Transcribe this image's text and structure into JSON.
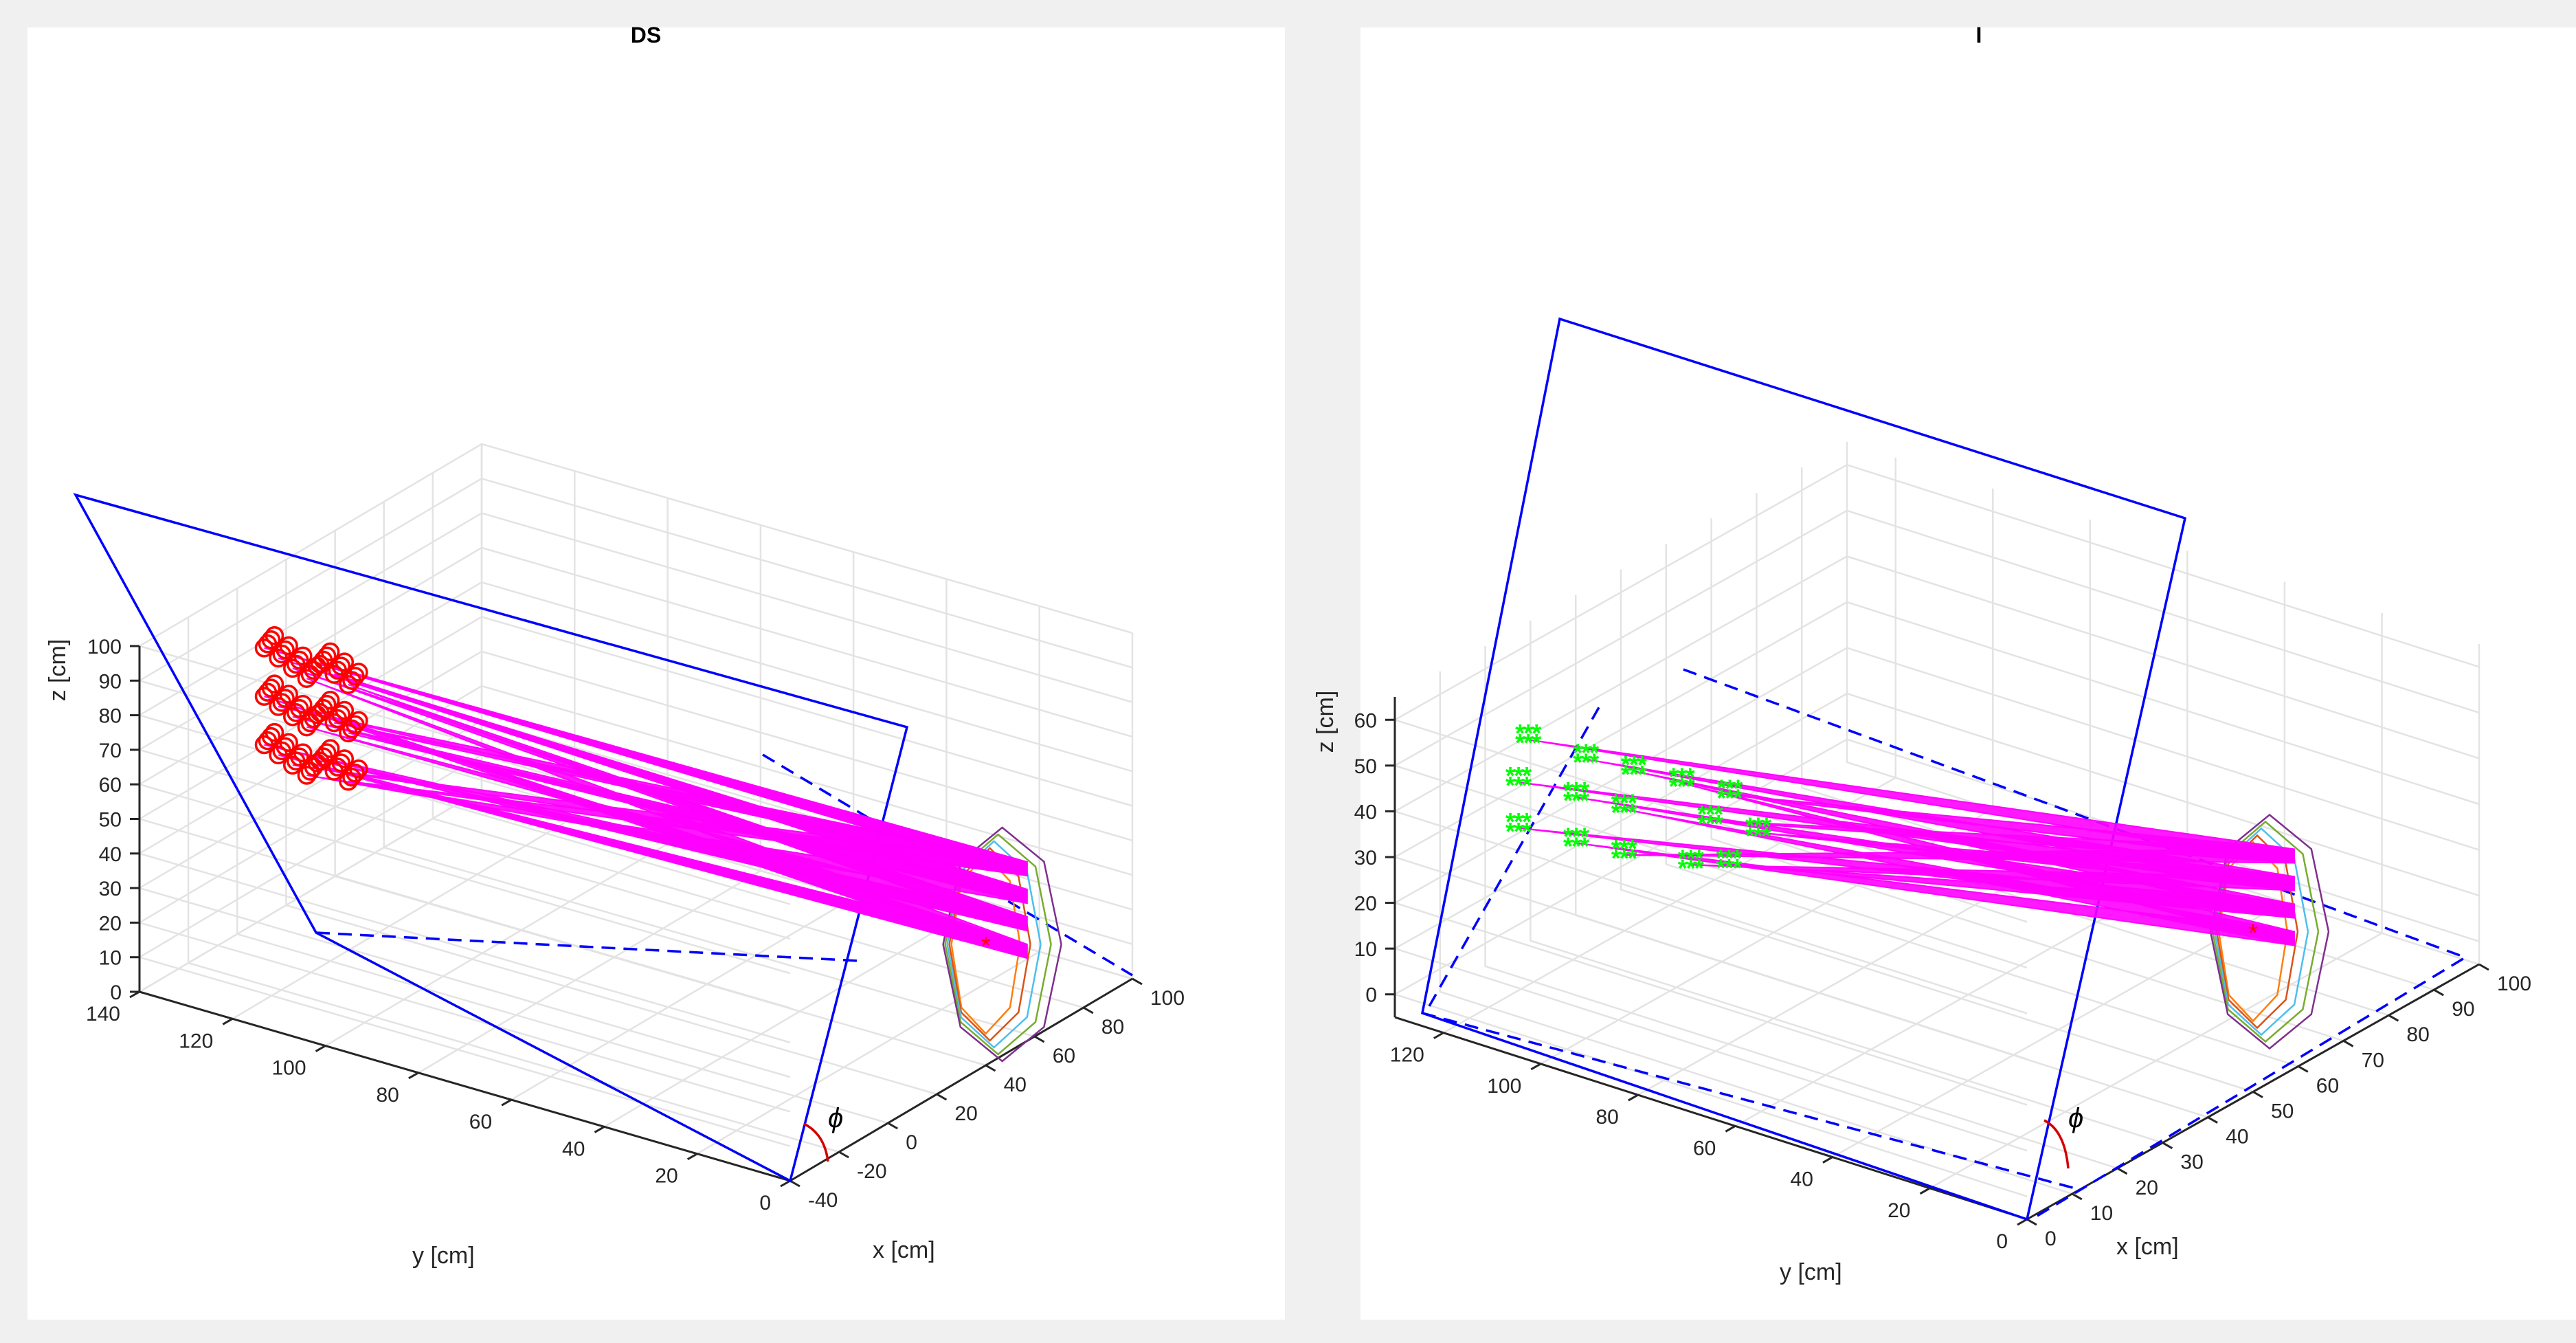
{
  "figure": {
    "background": "#f0f0f0",
    "axes_background": "#ffffff"
  },
  "chart_data": [
    {
      "type": "scatter3d",
      "title": "DS",
      "xlabel": "x [cm]",
      "ylabel": "y [cm]",
      "zlabel": "z [cm]",
      "xlim": [
        -40,
        100
      ],
      "ylim": [
        0,
        140
      ],
      "zlim": [
        0,
        100
      ],
      "xticks": [
        -40,
        -20,
        0,
        20,
        40,
        60,
        80,
        100
      ],
      "yticks": [
        0,
        20,
        40,
        60,
        80,
        100,
        120,
        140
      ],
      "zticks": [
        0,
        10,
        20,
        30,
        40,
        50,
        60,
        70,
        80,
        90,
        100
      ],
      "grid": true,
      "angle_label": "ϕ",
      "marker": "o",
      "marker_color": "#ff0000",
      "ray_color": "#ff00ff",
      "plane_color": "#0000ff",
      "source_point": [
        40,
        0,
        35
      ],
      "points": [
        [
          -8,
          130,
          90
        ],
        [
          -6,
          128,
          87
        ],
        [
          -4,
          126,
          84
        ],
        [
          -2,
          124,
          81
        ],
        [
          -8,
          118,
          90
        ],
        [
          -6,
          116,
          87
        ],
        [
          -4,
          114,
          84
        ],
        [
          -8,
          130,
          76
        ],
        [
          -6,
          128,
          73
        ],
        [
          -4,
          126,
          70
        ],
        [
          -2,
          124,
          67
        ],
        [
          -8,
          118,
          76
        ],
        [
          -6,
          116,
          73
        ],
        [
          -4,
          114,
          70
        ],
        [
          -8,
          130,
          62
        ],
        [
          -6,
          128,
          59
        ],
        [
          -4,
          126,
          56
        ],
        [
          -2,
          124,
          53
        ],
        [
          -8,
          118,
          62
        ],
        [
          -6,
          116,
          59
        ],
        [
          -4,
          114,
          56
        ]
      ]
    },
    {
      "type": "scatter3d",
      "title": "I",
      "xlabel": "x [cm]",
      "ylabel": "y [cm]",
      "zlabel": "z [cm]",
      "xlim": [
        0,
        100
      ],
      "ylim": [
        0,
        130
      ],
      "zlim": [
        -5,
        65
      ],
      "xticks": [
        0,
        10,
        20,
        30,
        40,
        50,
        60,
        70,
        80,
        90,
        100
      ],
      "yticks": [
        0,
        20,
        40,
        60,
        80,
        100,
        120
      ],
      "zticks": [
        0,
        10,
        20,
        30,
        40,
        50,
        60
      ],
      "grid": true,
      "angle_label": "ϕ",
      "marker": "*",
      "marker_color": "#00ff00",
      "ray_color": "#ff00ff",
      "plane_color": "#0000ff",
      "source_point": [
        50,
        0,
        30
      ],
      "points": [
        [
          8,
          110,
          58
        ],
        [
          10,
          100,
          56
        ],
        [
          12,
          92,
          55
        ],
        [
          14,
          84,
          54
        ],
        [
          16,
          76,
          53
        ],
        [
          8,
          112,
          48
        ],
        [
          10,
          102,
          47
        ],
        [
          12,
          94,
          46
        ],
        [
          16,
          80,
          46
        ],
        [
          18,
          72,
          45
        ],
        [
          8,
          112,
          38
        ],
        [
          10,
          102,
          37
        ],
        [
          12,
          94,
          36
        ],
        [
          16,
          84,
          35
        ],
        [
          18,
          78,
          36
        ]
      ]
    }
  ]
}
